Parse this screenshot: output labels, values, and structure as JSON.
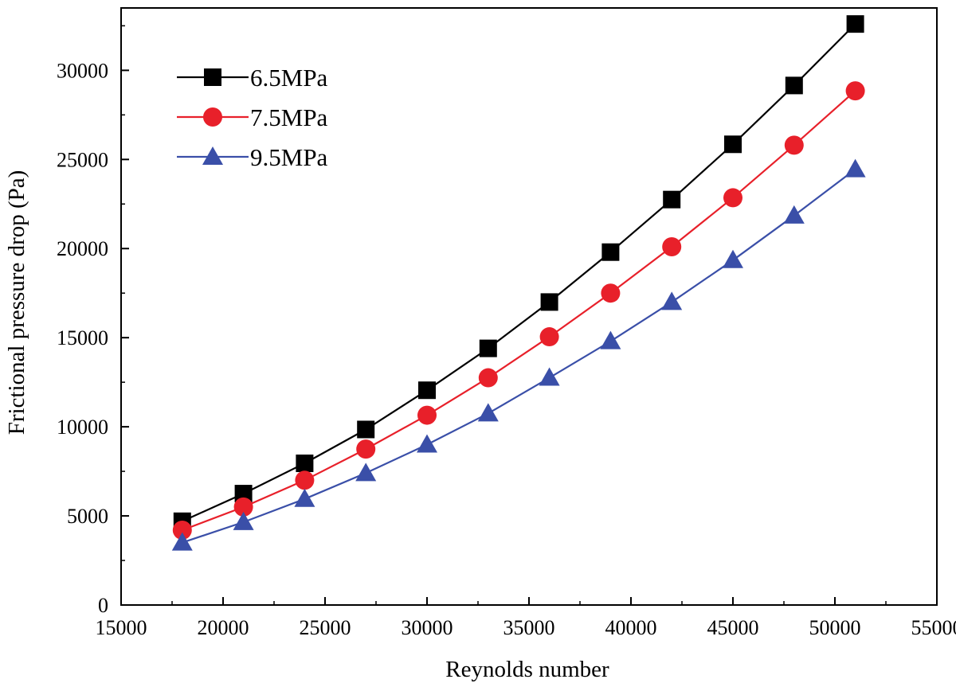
{
  "chart_data": {
    "type": "line",
    "title": "",
    "xlabel": "Reynolds number",
    "ylabel": "Frictional pressure drop (Pa)",
    "xlim": [
      15000,
      55000
    ],
    "ylim": [
      0,
      33500
    ],
    "xticks": [
      15000,
      20000,
      25000,
      30000,
      35000,
      40000,
      45000,
      50000,
      55000
    ],
    "yticks": [
      0,
      5000,
      10000,
      15000,
      20000,
      25000,
      30000
    ],
    "grid": false,
    "legend_position": "top-left",
    "x": [
      18000,
      21000,
      24000,
      27000,
      30000,
      33000,
      36000,
      39000,
      42000,
      45000,
      48000,
      51000
    ],
    "series": [
      {
        "name": "6.5MPa",
        "color": "#000000",
        "marker": "square",
        "values": [
          4700,
          6250,
          7950,
          9850,
          12050,
          14400,
          17000,
          19800,
          22750,
          25850,
          29150,
          32600
        ]
      },
      {
        "name": "7.5MPa",
        "color": "#e8202a",
        "marker": "circle",
        "values": [
          4200,
          5500,
          7000,
          8750,
          10650,
          12750,
          15050,
          17500,
          20100,
          22850,
          25800,
          28850
        ]
      },
      {
        "name": "9.5MPa",
        "color": "#3a4fa8",
        "marker": "triangle",
        "values": [
          3500,
          4650,
          5950,
          7400,
          9000,
          10750,
          12750,
          14800,
          17000,
          19350,
          21850,
          24450
        ]
      }
    ]
  }
}
